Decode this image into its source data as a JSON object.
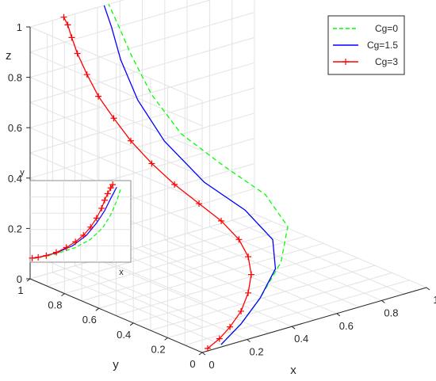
{
  "chart_data": {
    "type": "line",
    "subtype": "3d-line-with-inset",
    "xlabel": "x",
    "ylabel": "y",
    "zlabel": "z",
    "xlim": [
      0,
      1
    ],
    "ylim": [
      0,
      1
    ],
    "zlim": [
      0,
      1
    ],
    "x_ticks": [
      "0",
      "0.2",
      "0.4",
      "0.6",
      "0.8",
      "1"
    ],
    "y_ticks": [
      "0",
      "0.2",
      "0.4",
      "0.6",
      "0.8",
      "1"
    ],
    "z_ticks": [
      "0",
      "0.2",
      "0.4",
      "0.6",
      "0.8",
      "1"
    ],
    "grid": true,
    "legend_position": "top-right",
    "series": [
      {
        "name": "Cg=0",
        "color": "#00ff00",
        "style": "dashed",
        "marker": "none",
        "points": [
          [
            0.1,
            0.02,
            0.0
          ],
          [
            0.22,
            0.06,
            0.04
          ],
          [
            0.35,
            0.12,
            0.09
          ],
          [
            0.52,
            0.22,
            0.16
          ],
          [
            0.65,
            0.35,
            0.23
          ],
          [
            0.68,
            0.52,
            0.3
          ],
          [
            0.62,
            0.68,
            0.38
          ],
          [
            0.52,
            0.8,
            0.5
          ],
          [
            0.45,
            0.88,
            0.65
          ],
          [
            0.4,
            0.93,
            0.8
          ],
          [
            0.37,
            0.97,
            0.92
          ],
          [
            0.35,
            1.0,
            1.0
          ]
        ]
      },
      {
        "name": "Cg=1.5",
        "color": "#0000ff",
        "style": "solid",
        "marker": "none",
        "points": [
          [
            0.1,
            0.02,
            0.0
          ],
          [
            0.22,
            0.06,
            0.04
          ],
          [
            0.35,
            0.12,
            0.09
          ],
          [
            0.48,
            0.2,
            0.15
          ],
          [
            0.56,
            0.32,
            0.21
          ],
          [
            0.56,
            0.48,
            0.28
          ],
          [
            0.5,
            0.64,
            0.36
          ],
          [
            0.43,
            0.78,
            0.5
          ],
          [
            0.38,
            0.87,
            0.65
          ],
          [
            0.35,
            0.93,
            0.8
          ],
          [
            0.34,
            0.97,
            0.92
          ],
          [
            0.33,
            1.0,
            1.0
          ]
        ]
      },
      {
        "name": "Cg=3",
        "color": "#ff0000",
        "style": "solid",
        "marker": "plus",
        "points": [
          [
            0.04,
            0.02,
            0.0
          ],
          [
            0.1,
            0.03,
            0.02
          ],
          [
            0.17,
            0.06,
            0.04
          ],
          [
            0.25,
            0.1,
            0.07
          ],
          [
            0.32,
            0.15,
            0.11
          ],
          [
            0.38,
            0.21,
            0.15
          ],
          [
            0.42,
            0.28,
            0.19
          ],
          [
            0.44,
            0.36,
            0.23
          ],
          [
            0.43,
            0.45,
            0.28
          ],
          [
            0.4,
            0.54,
            0.33
          ],
          [
            0.36,
            0.63,
            0.39
          ],
          [
            0.32,
            0.71,
            0.46
          ],
          [
            0.28,
            0.78,
            0.54
          ],
          [
            0.25,
            0.84,
            0.62
          ],
          [
            0.22,
            0.89,
            0.7
          ],
          [
            0.2,
            0.93,
            0.78
          ],
          [
            0.18,
            0.96,
            0.86
          ],
          [
            0.17,
            0.98,
            0.92
          ],
          [
            0.16,
            0.99,
            0.97
          ],
          [
            0.15,
            1.0,
            1.0
          ]
        ]
      }
    ],
    "inset": {
      "xlabel": "x",
      "ylabel": "y",
      "series": [
        {
          "name": "Cg=0",
          "points": [
            [
              0.05,
              0.05
            ],
            [
              0.25,
              0.1
            ],
            [
              0.45,
              0.18
            ],
            [
              0.6,
              0.28
            ],
            [
              0.72,
              0.42
            ],
            [
              0.8,
              0.58
            ],
            [
              0.86,
              0.75
            ],
            [
              0.9,
              0.9
            ]
          ]
        },
        {
          "name": "Cg=1.5",
          "points": [
            [
              0.05,
              0.05
            ],
            [
              0.25,
              0.11
            ],
            [
              0.42,
              0.2
            ],
            [
              0.56,
              0.33
            ],
            [
              0.66,
              0.48
            ],
            [
              0.74,
              0.63
            ],
            [
              0.8,
              0.78
            ],
            [
              0.86,
              0.92
            ]
          ]
        },
        {
          "name": "Cg=3",
          "points": [
            [
              0.02,
              0.05
            ],
            [
              0.08,
              0.06
            ],
            [
              0.16,
              0.08
            ],
            [
              0.26,
              0.12
            ],
            [
              0.36,
              0.18
            ],
            [
              0.45,
              0.25
            ],
            [
              0.53,
              0.33
            ],
            [
              0.6,
              0.43
            ],
            [
              0.66,
              0.54
            ],
            [
              0.71,
              0.66
            ],
            [
              0.74,
              0.76
            ],
            [
              0.77,
              0.84
            ],
            [
              0.8,
              0.91
            ],
            [
              0.82,
              0.95
            ]
          ]
        }
      ]
    }
  }
}
